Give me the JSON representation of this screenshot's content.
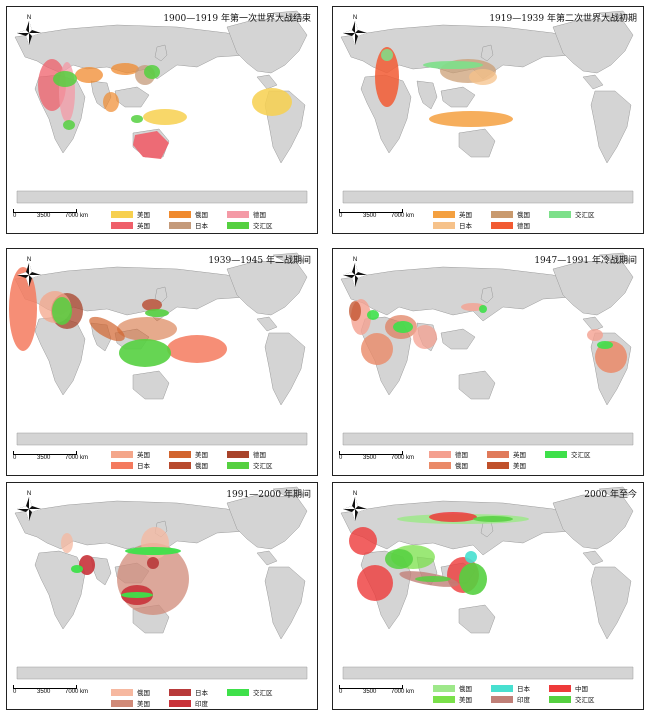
{
  "scale_labels": [
    "0",
    "3500",
    "7000 km"
  ],
  "north_label": "N",
  "colors": {
    "land": "#d4d4d4",
    "land_stroke": "#9a9a9a",
    "ocean": "#ffffff"
  },
  "panels": [
    {
      "title": "1900—1919 年第一次世界大战结束",
      "legend": [
        {
          "label": "美国",
          "color": "#f7d04f"
        },
        {
          "label": "俄国",
          "color": "#f08a2e"
        },
        {
          "label": "德国",
          "color": "#f49aa6"
        },
        {
          "label": "英国",
          "color": "#ef5f6a"
        },
        {
          "label": "日本",
          "color": "#c49a7a"
        },
        {
          "label": "交汇区",
          "color": "#55d040"
        }
      ]
    },
    {
      "title": "1919—1939 年第二次世界大战初期",
      "legend": [
        {
          "label": "英国",
          "color": "#f4a040"
        },
        {
          "label": "俄国",
          "color": "#c99a6e"
        },
        {
          "label": "交汇区",
          "color": "#7de08a"
        },
        {
          "label": "日本",
          "color": "#f6c28a"
        },
        {
          "label": "德国",
          "color": "#f25a32"
        }
      ]
    },
    {
      "title": "1939—1945 年二战期间",
      "legend": [
        {
          "label": "英国",
          "color": "#f4a68a"
        },
        {
          "label": "美国",
          "color": "#d2642e"
        },
        {
          "label": "德国",
          "color": "#a8432a"
        },
        {
          "label": "日本",
          "color": "#f47a5e"
        },
        {
          "label": "俄国",
          "color": "#b84a2e"
        },
        {
          "label": "交汇区",
          "color": "#55d040"
        }
      ]
    },
    {
      "title": "1947—1991 年冷战期间",
      "legend": [
        {
          "label": "德国",
          "color": "#f4a090"
        },
        {
          "label": "英国",
          "color": "#e07a5a"
        },
        {
          "label": "交汇区",
          "color": "#3ee04a"
        },
        {
          "label": "俄国",
          "color": "#ea8a68"
        },
        {
          "label": "美国",
          "color": "#c0502a"
        }
      ]
    },
    {
      "title": "1991—2000 年期间",
      "legend": [
        {
          "label": "俄国",
          "color": "#f6b8a0"
        },
        {
          "label": "日本",
          "color": "#b83a3a"
        },
        {
          "label": "交汇区",
          "color": "#3ee04a"
        },
        {
          "label": "美国",
          "color": "#d08a78"
        },
        {
          "label": "印度",
          "color": "#c8333a"
        }
      ]
    },
    {
      "title": "2000 年至今",
      "legend": [
        {
          "label": "俄国",
          "color": "#9ee88a"
        },
        {
          "label": "日本",
          "color": "#48e0d0"
        },
        {
          "label": "中国",
          "color": "#ee3a3a"
        },
        {
          "label": "美国",
          "color": "#7ae04a"
        },
        {
          "label": "印度",
          "color": "#c08078"
        },
        {
          "label": "交汇区",
          "color": "#55d040"
        }
      ]
    }
  ]
}
